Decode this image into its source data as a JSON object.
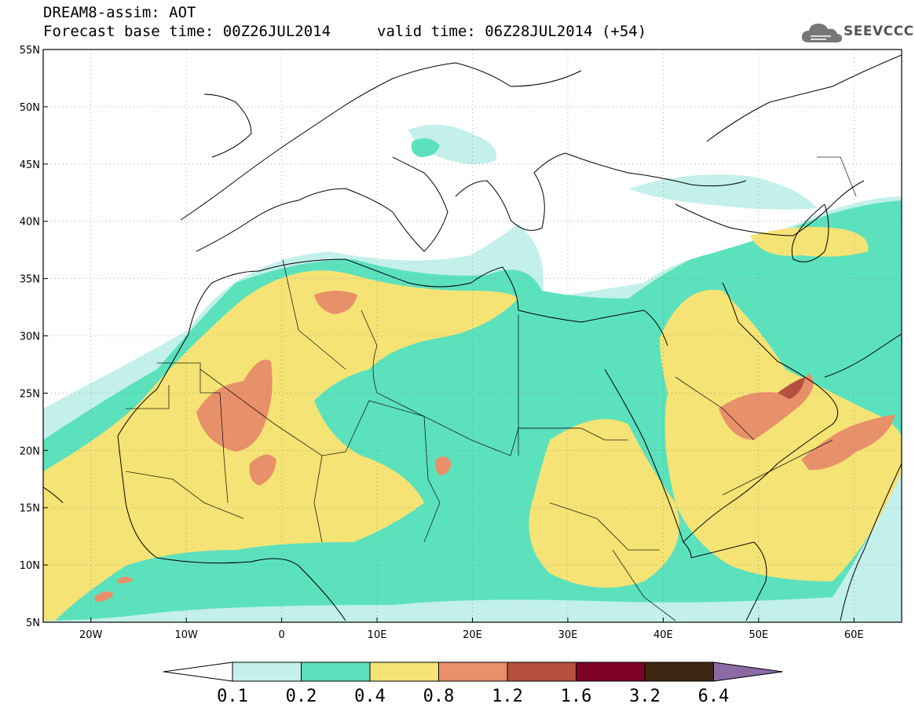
{
  "title": {
    "line1": "DREAM8-assim: AOT",
    "line2": "Forecast base time: 00Z26JUL2014",
    "valid": "valid time: 06Z28JUL2014 (+54)"
  },
  "logo": {
    "text": "SEEVCCC",
    "icon": "cloud-icon"
  },
  "axes": {
    "lat_labels": [
      "55N",
      "50N",
      "45N",
      "40N",
      "35N",
      "30N",
      "25N",
      "20N",
      "15N",
      "10N",
      "5N"
    ],
    "lat_values": [
      55,
      50,
      45,
      40,
      35,
      30,
      25,
      20,
      15,
      10,
      5
    ],
    "lon_labels": [
      "20W",
      "10W",
      "0",
      "10E",
      "20E",
      "30E",
      "40E",
      "50E",
      "60E"
    ],
    "lon_values": [
      -20,
      -10,
      0,
      10,
      20,
      30,
      40,
      50,
      60
    ],
    "lon_range": [
      -25,
      65
    ],
    "lat_range": [
      5,
      55
    ],
    "grid": true
  },
  "colorbar": {
    "labels": [
      "0.1",
      "0.2",
      "0.4",
      "0.8",
      "1.2",
      "1.6",
      "3.2",
      "6.4"
    ],
    "colors": [
      "#c3f0ea",
      "#5ce1bd",
      "#f5e375",
      "#e8906a",
      "#b5503e",
      "#7d0027",
      "#3d2612",
      "#8b6aa6"
    ],
    "under_color": "#ffffff"
  }
}
